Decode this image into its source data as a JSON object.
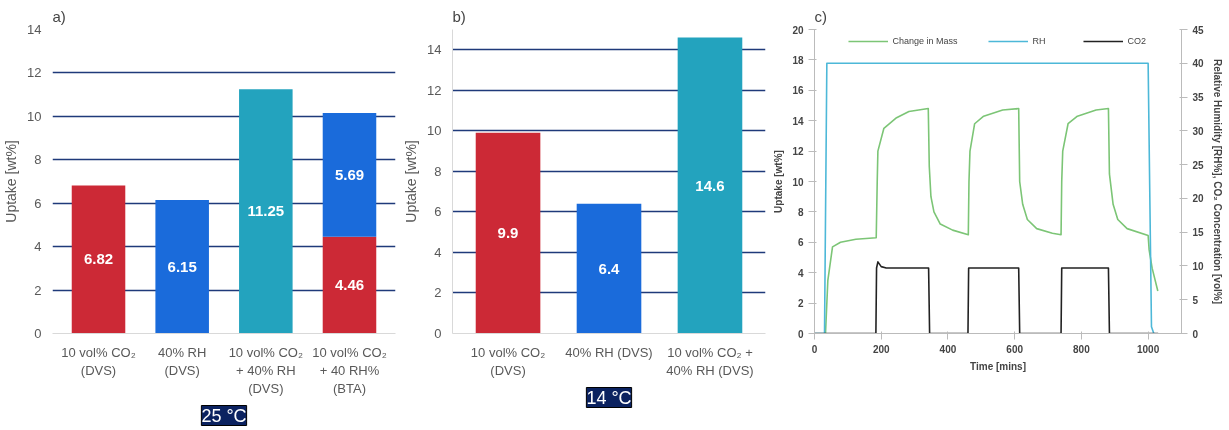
{
  "chart_data": [
    {
      "type": "bar",
      "title": "a)",
      "ylabel": "Uptake [wt%]",
      "stacked": true,
      "data_labels": true,
      "grid": "y",
      "ylim": [
        0,
        14
      ],
      "yticks": [
        0,
        2,
        4,
        6,
        8,
        10,
        12,
        14
      ],
      "annotations": [
        "25 °C"
      ],
      "categories": [
        "10 vol% CO₂ (DVS)",
        "40% RH (DVS)",
        "10 vol% CO₂ + 40% RH (DVS)",
        "10 vol% CO₂ + 40 RH% (BTA)"
      ],
      "series": [
        {
          "values": [
            6.82,
            6.15,
            11.25,
            4.46
          ],
          "colors": [
            "#cc2936",
            "#1a6bdb",
            "#23a3be",
            "#cc2936"
          ]
        },
        {
          "values": [
            null,
            null,
            null,
            5.69
          ],
          "color": "#1a6bdb"
        }
      ]
    },
    {
      "type": "bar",
      "title": "b)",
      "ylabel": "Uptake [wt%]",
      "data_labels": true,
      "grid": "y",
      "ylim": [
        0,
        15
      ],
      "yticks": [
        0,
        2,
        4,
        6,
        8,
        10,
        12,
        14
      ],
      "annotations": [
        "14 °C"
      ],
      "categories": [
        "10 vol% CO₂ (DVS)",
        "40% RH (DVS)",
        "10 vol% CO₂ + 40% RH (DVS)"
      ],
      "values": [
        9.9,
        6.4,
        14.6
      ],
      "colors": [
        "#cc2936",
        "#1a6bdb",
        "#23a3be"
      ]
    },
    {
      "type": "line",
      "title": "c)",
      "xlabel": "Time [mins]",
      "ylabel": "Uptake [wt%]",
      "y2label": "Relative Humidity [RH%], CO₂ Concentration [vol%]",
      "legend": "top",
      "grid": false,
      "xlim": [
        0,
        1100
      ],
      "xticks": [
        0,
        200,
        400,
        600,
        800,
        1000
      ],
      "ylim": [
        0,
        20
      ],
      "yticks": [
        0,
        2,
        4,
        6,
        8,
        10,
        12,
        14,
        16,
        18,
        20
      ],
      "y2lim": [
        0,
        45
      ],
      "y2ticks": [
        0,
        5,
        10,
        15,
        20,
        25,
        30,
        35,
        40,
        45
      ],
      "series": [
        {
          "name": "Change in Mass",
          "color": "#7cc576",
          "x": [
            33,
            40,
            54,
            78,
            124,
            185,
            188,
            190,
            208,
            246,
            283,
            341,
            344,
            349,
            358,
            377,
            414,
            461,
            463,
            466,
            480,
            507,
            564,
            612,
            615,
            624,
            638,
            666,
            713,
            739,
            741,
            744,
            760,
            788,
            844,
            881,
            884,
            895,
            909,
            937,
            1000,
            1003,
            1012,
            1029
          ],
          "values": [
            0,
            3.5,
            5.7,
            6.0,
            6.2,
            6.3,
            10,
            12,
            13.5,
            14.2,
            14.6,
            14.8,
            11,
            9,
            8,
            7.2,
            6.8,
            6.5,
            10,
            12,
            13.8,
            14.3,
            14.7,
            14.8,
            10,
            8.5,
            7.5,
            6.9,
            6.6,
            6.5,
            10,
            12,
            13.8,
            14.3,
            14.7,
            14.8,
            10.5,
            8.5,
            7.5,
            6.9,
            6.45,
            5.5,
            4.3,
            2.8
          ]
        },
        {
          "name": "RH",
          "color": "#4db8d8",
          "axis": "y2",
          "x": [
            0,
            30,
            37,
            1000,
            1010,
            1017
          ],
          "values": [
            0,
            0,
            40,
            40,
            1,
            0
          ]
        },
        {
          "name": "CO2",
          "color": "#222222",
          "axis": "y2",
          "x": [
            0,
            184,
            186,
            190,
            200,
            215,
            342,
            345,
            460,
            462,
            612,
            615,
            739,
            741,
            881,
            884,
            1030
          ],
          "values": [
            0,
            0,
            9.7,
            10.6,
            9.9,
            9.7,
            9.7,
            0,
            0,
            9.7,
            9.7,
            0,
            0,
            9.7,
            9.7,
            0,
            0
          ]
        }
      ]
    }
  ]
}
